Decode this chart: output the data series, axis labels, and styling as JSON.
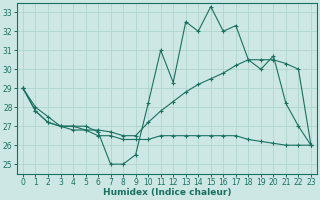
{
  "xlabel": "Humidex (Indice chaleur)",
  "ylabel": "",
  "background_color": "#cde8e4",
  "grid_color": "#b0d4cc",
  "line_color": "#1a7060",
  "xlim": [
    -0.5,
    23.5
  ],
  "ylim": [
    24.5,
    33.5
  ],
  "yticks": [
    25,
    26,
    27,
    28,
    29,
    30,
    31,
    32,
    33
  ],
  "xticks": [
    0,
    1,
    2,
    3,
    4,
    5,
    6,
    7,
    8,
    9,
    10,
    11,
    12,
    13,
    14,
    15,
    16,
    17,
    18,
    19,
    20,
    21,
    22,
    23
  ],
  "series": [
    {
      "x": [
        0,
        1,
        2,
        3,
        4,
        5,
        6,
        7,
        8,
        9,
        10,
        11,
        12,
        13,
        14,
        15,
        16,
        17,
        18,
        19,
        20,
        21,
        22,
        23
      ],
      "y": [
        29.0,
        28.0,
        27.5,
        27.0,
        27.0,
        27.0,
        26.7,
        25.0,
        25.0,
        25.5,
        28.2,
        31.0,
        29.3,
        32.5,
        32.0,
        33.3,
        32.0,
        32.3,
        30.5,
        30.0,
        30.7,
        28.2,
        27.0,
        26.0
      ]
    },
    {
      "x": [
        0,
        1,
        2,
        3,
        4,
        5,
        6,
        7,
        8,
        9,
        10,
        11,
        12,
        13,
        14,
        15,
        16,
        17,
        18,
        19,
        20,
        21,
        22,
        23
      ],
      "y": [
        29.0,
        27.8,
        27.2,
        27.0,
        26.8,
        26.8,
        26.8,
        26.7,
        26.5,
        26.5,
        27.2,
        27.8,
        28.3,
        28.8,
        29.2,
        29.5,
        29.8,
        30.2,
        30.5,
        30.5,
        30.5,
        30.3,
        30.0,
        26.0
      ]
    },
    {
      "x": [
        0,
        1,
        2,
        3,
        4,
        5,
        6,
        7,
        8,
        9,
        10,
        11,
        12,
        13,
        14,
        15,
        16,
        17,
        18,
        19,
        20,
        21,
        22,
        23
      ],
      "y": [
        29.0,
        27.8,
        27.2,
        27.0,
        27.0,
        26.8,
        26.5,
        26.5,
        26.3,
        26.3,
        26.3,
        26.5,
        26.5,
        26.5,
        26.5,
        26.5,
        26.5,
        26.5,
        26.3,
        26.2,
        26.1,
        26.0,
        26.0,
        26.0
      ]
    }
  ]
}
